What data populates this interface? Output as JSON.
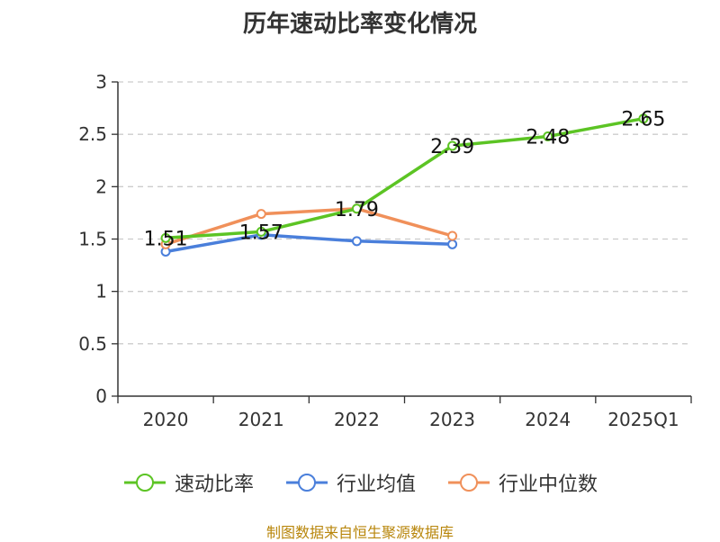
{
  "title": "历年速动比率变化情况",
  "source_note": "制图数据来自恒生聚源数据库",
  "chart_data": {
    "type": "line",
    "categories": [
      "2020",
      "2021",
      "2022",
      "2023",
      "2024",
      "2025Q1"
    ],
    "ylim": [
      0,
      3
    ],
    "yticks": [
      "0",
      "0.5",
      "1",
      "1.5",
      "2",
      "2.5",
      "3"
    ],
    "grid": true,
    "legend": "bottom",
    "series": [
      {
        "name": "速动比率",
        "color": "#5cc424",
        "values": [
          1.51,
          1.57,
          1.79,
          2.39,
          2.48,
          2.65
        ],
        "labels": [
          "1.51",
          "1.57",
          "1.79",
          "2.39",
          "2.48",
          "2.65"
        ]
      },
      {
        "name": "行业均值",
        "color": "#4a7fdb",
        "values": [
          1.38,
          1.54,
          1.48,
          1.45,
          null,
          null
        ]
      },
      {
        "name": "行业中位数",
        "color": "#f0905a",
        "values": [
          1.45,
          1.74,
          1.79,
          1.53,
          null,
          null
        ]
      }
    ]
  }
}
